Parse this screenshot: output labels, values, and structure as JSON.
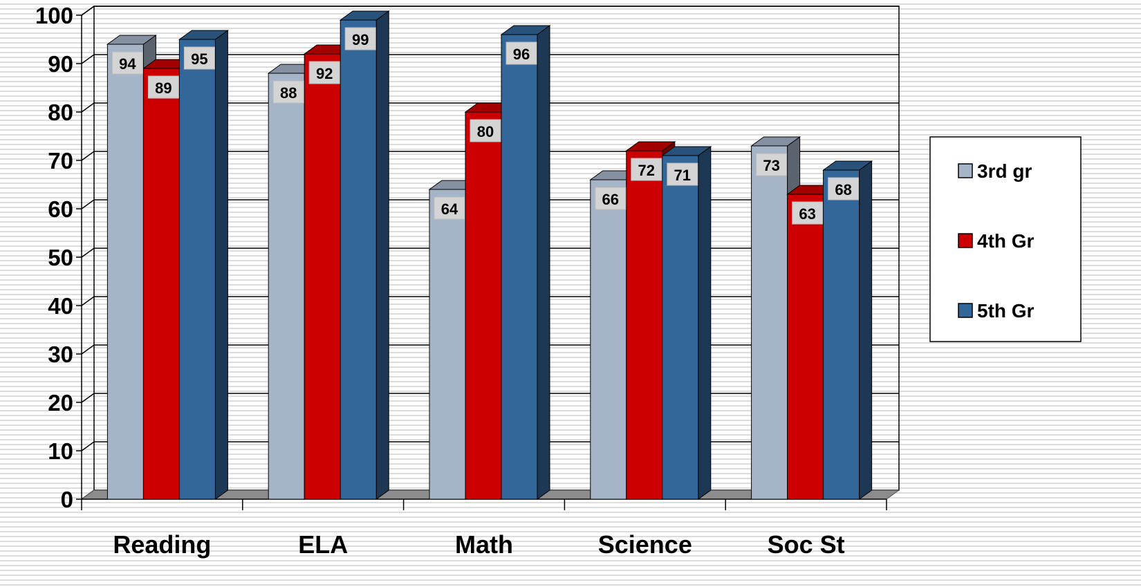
{
  "chart_data": {
    "type": "bar",
    "title": "",
    "xlabel": "",
    "ylabel": "",
    "categories": [
      "Reading",
      "ELA",
      "Math",
      "Science",
      "Soc St"
    ],
    "series": [
      {
        "name": "3rd gr",
        "values": [
          94,
          88,
          64,
          66,
          73
        ],
        "color": "#a6b4c8"
      },
      {
        "name": "4th Gr",
        "values": [
          89,
          92,
          80,
          72,
          63
        ],
        "color": "#cc0000"
      },
      {
        "name": "5th Gr",
        "values": [
          95,
          99,
          96,
          71,
          68
        ],
        "color": "#336699"
      }
    ],
    "ylim": [
      0,
      100
    ],
    "yticks": [
      "0",
      "10",
      "20",
      "30",
      "40",
      "50",
      "60",
      "70",
      "80",
      "90",
      "100"
    ],
    "grid": true,
    "legend_position": "right",
    "style": "3d-clustered-column"
  }
}
